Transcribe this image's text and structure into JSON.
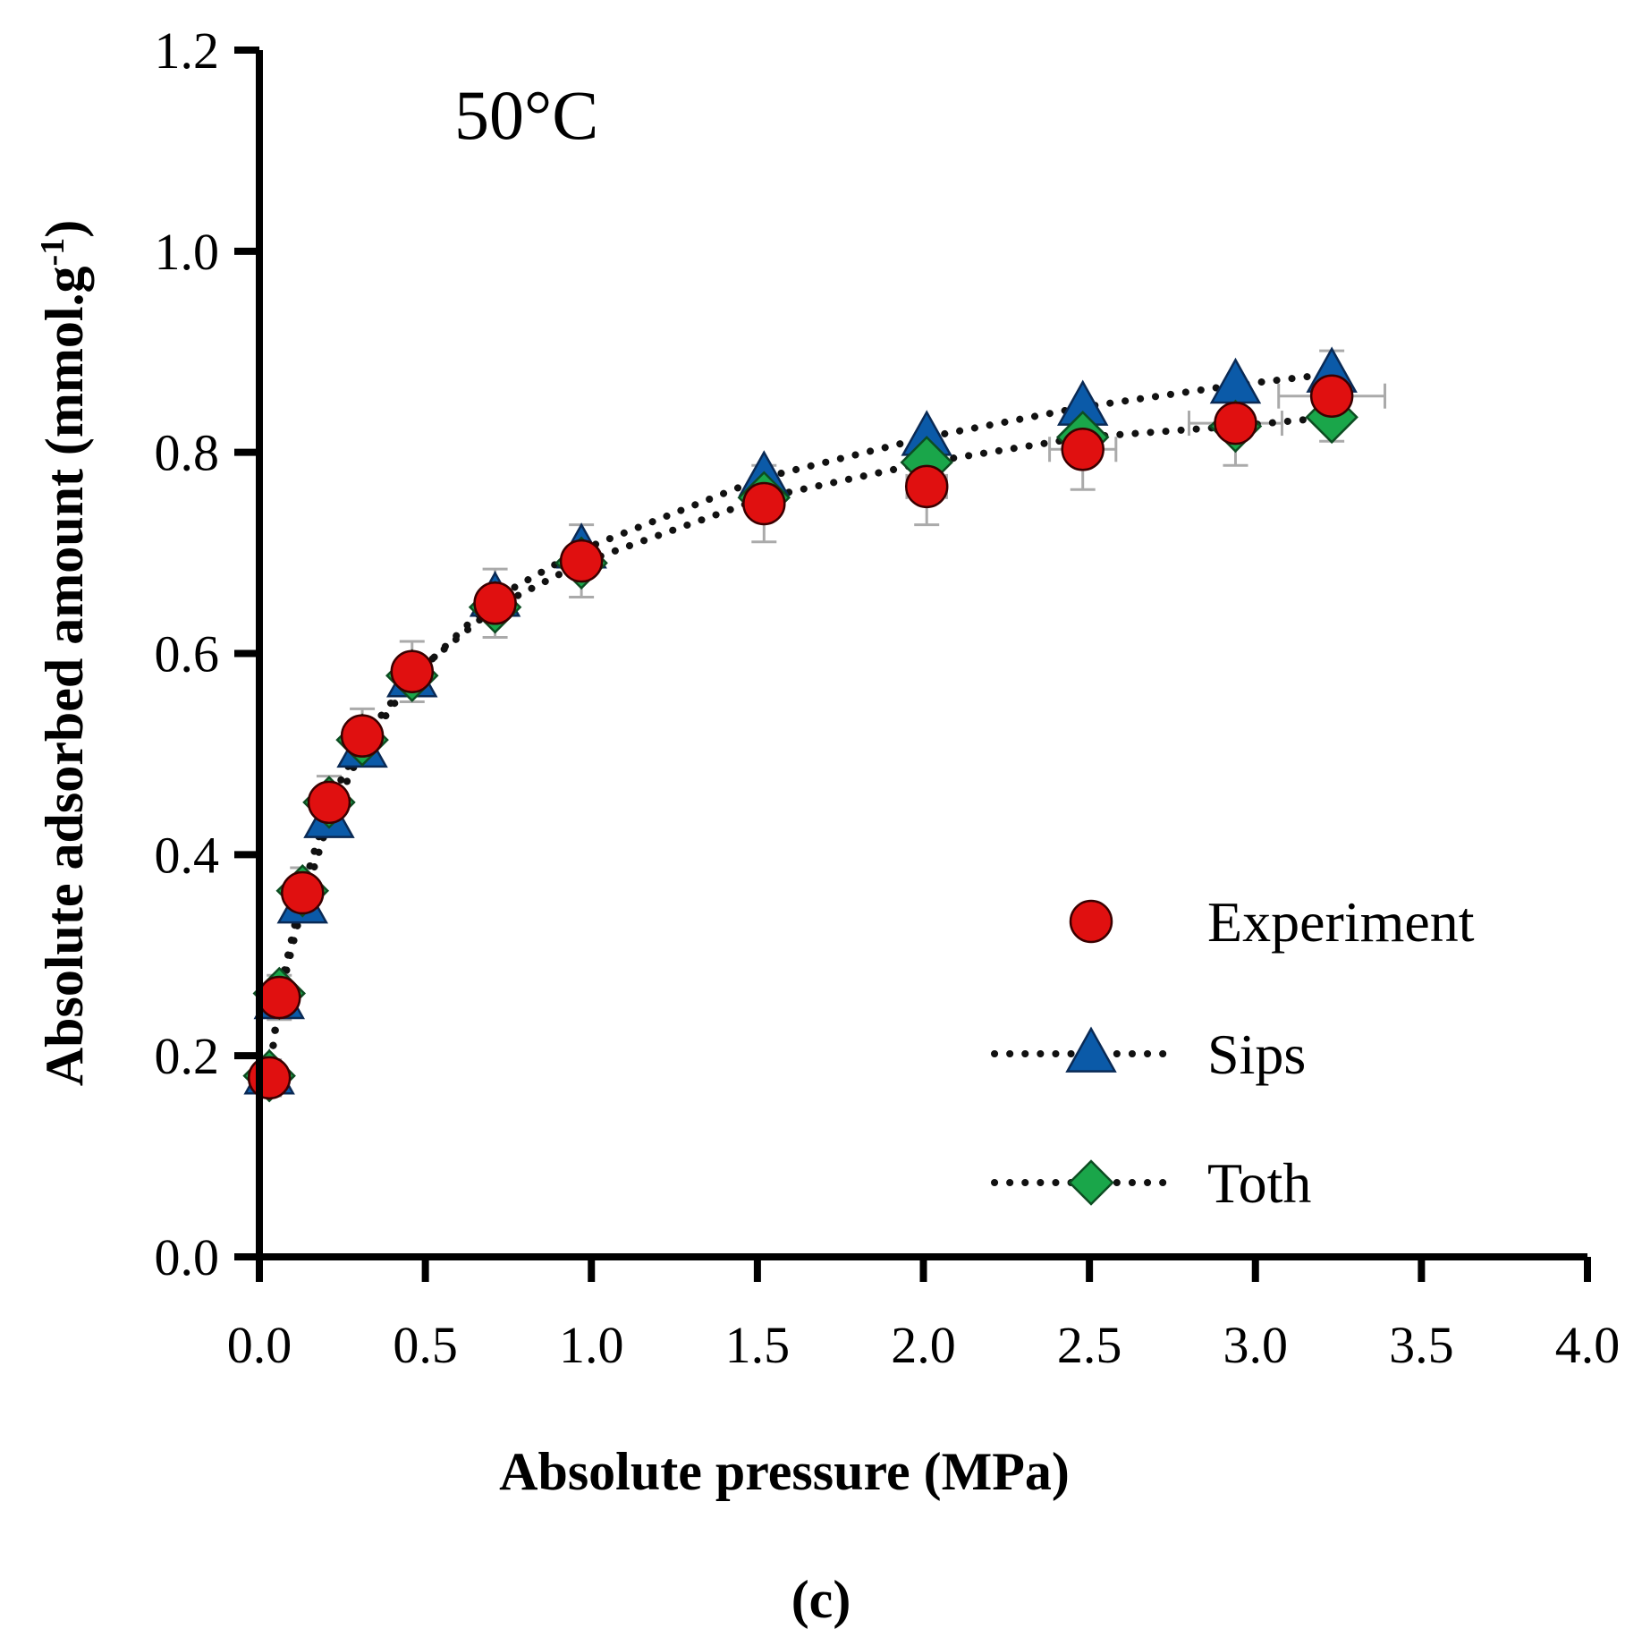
{
  "chart_data": {
    "type": "scatter",
    "xlabel": "Absolute pressure (MPa)",
    "ylabel_main": "Absolute adsorbed amount (mmol.g",
    "ylabel_sup": "-1",
    "ylabel_close": ")",
    "annotation": "50°C",
    "panel_label": "(c)",
    "xlim": [
      0,
      4.0
    ],
    "ylim": [
      0,
      1.2
    ],
    "x_ticks": [
      "0.0",
      "0.5",
      "1.0",
      "1.5",
      "2.0",
      "2.5",
      "3.0",
      "3.5",
      "4.0"
    ],
    "y_ticks": [
      "0.0",
      "0.2",
      "0.4",
      "0.6",
      "0.8",
      "1.0",
      "1.2"
    ],
    "legend_position": "bottom-right",
    "colors": {
      "experiment": "#e01010",
      "sips": "#0b5aa8",
      "toth": "#1aa64a",
      "error_bar": "#aaaaaa",
      "fit_line": "#111111"
    },
    "series": [
      {
        "name": "Experiment",
        "marker": "circle",
        "x": [
          0.03,
          0.06,
          0.13,
          0.21,
          0.31,
          0.46,
          0.71,
          0.97,
          1.52,
          2.01,
          2.48,
          2.94,
          3.23
        ],
        "y": [
          0.178,
          0.258,
          0.362,
          0.452,
          0.518,
          0.582,
          0.65,
          0.692,
          0.749,
          0.766,
          0.803,
          0.829,
          0.856
        ],
        "y_err": [
          0.018,
          0.022,
          0.025,
          0.026,
          0.027,
          0.03,
          0.034,
          0.036,
          0.038,
          0.038,
          0.04,
          0.042,
          0.045
        ],
        "x_err": [
          0,
          0,
          0,
          0,
          0,
          0,
          0,
          0,
          0.03,
          0.06,
          0.1,
          0.14,
          0.16
        ]
      },
      {
        "name": "Sips",
        "marker": "triangle",
        "line": "dotted",
        "x": [
          0.03,
          0.06,
          0.13,
          0.21,
          0.31,
          0.46,
          0.71,
          0.97,
          1.52,
          2.01,
          2.48,
          2.94,
          3.23
        ],
        "y": [
          0.18,
          0.255,
          0.35,
          0.435,
          0.505,
          0.575,
          0.655,
          0.703,
          0.775,
          0.815,
          0.845,
          0.867,
          0.878
        ]
      },
      {
        "name": "Toth",
        "marker": "diamond",
        "line": "dotted",
        "x": [
          0.03,
          0.06,
          0.13,
          0.21,
          0.31,
          0.46,
          0.71,
          0.97,
          1.52,
          2.01,
          2.48,
          2.94,
          3.23
        ],
        "y": [
          0.18,
          0.262,
          0.364,
          0.452,
          0.514,
          0.578,
          0.646,
          0.69,
          0.755,
          0.79,
          0.815,
          0.826,
          0.835
        ]
      }
    ]
  }
}
